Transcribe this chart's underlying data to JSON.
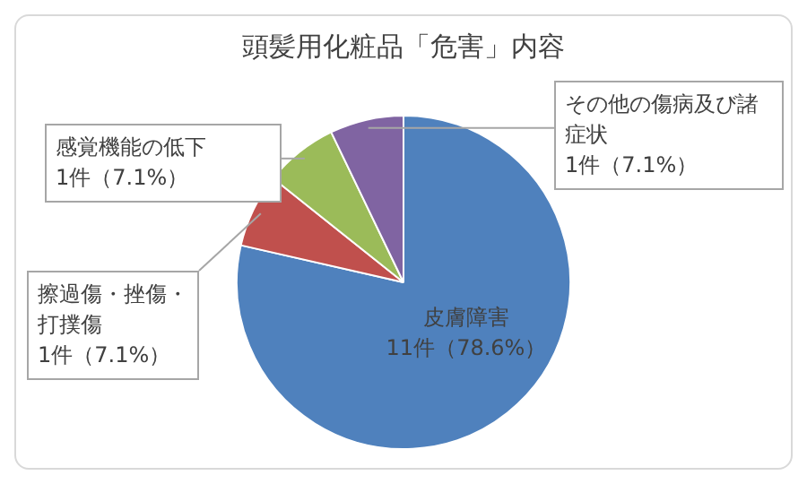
{
  "chart_data": {
    "type": "pie",
    "title": "頭髪用化粧品「危害」内容",
    "categories": [
      "皮膚障害",
      "擦過傷・挫傷・打撲傷",
      "感覚機能の低下",
      "その他の傷病及び諸症状"
    ],
    "values": [
      11,
      1,
      1,
      1
    ],
    "colors": [
      "#4f81bd",
      "#c0504d",
      "#9bbb59",
      "#8064a2"
    ],
    "value_labels": [
      "11件（78.6%）",
      "1件（7.1%）",
      "1件（7.1%）",
      "1件（7.1%）"
    ]
  }
}
